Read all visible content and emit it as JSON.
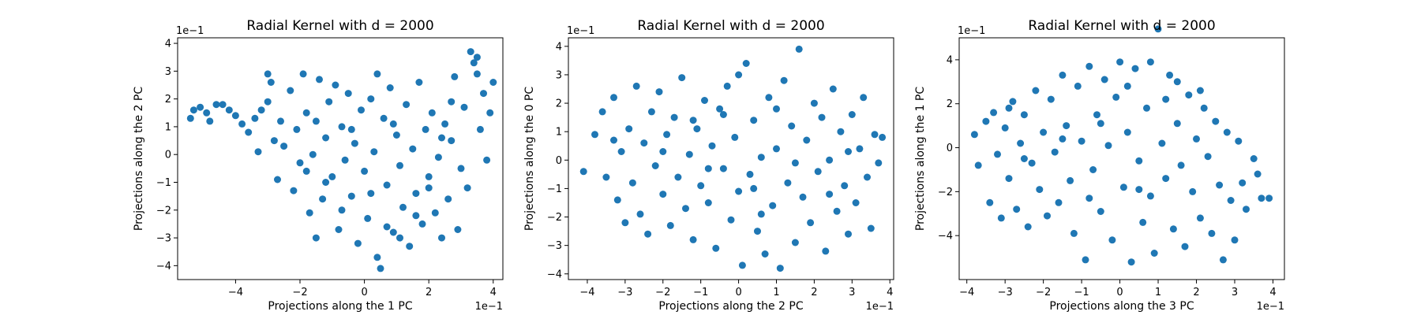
{
  "chart_data": [
    {
      "type": "scatter",
      "title": "Radial Kernel with d = 2000",
      "xlabel": "Projections along the 1 PC",
      "ylabel": "Projections along the 2 PC",
      "x_offset_label": "1e−1",
      "y_offset_label": "1e−1",
      "xlim": [
        -5.8,
        4.3
      ],
      "ylim": [
        -4.5,
        4.2
      ],
      "xticks": [
        -4,
        -2,
        0,
        2,
        4
      ],
      "yticks": [
        -4,
        -3,
        -2,
        -1,
        0,
        1,
        2,
        3,
        4
      ],
      "xtick_labels": [
        "−4",
        "−2",
        "0",
        "2",
        "4"
      ],
      "ytick_labels": [
        "−4",
        "−3",
        "−2",
        "−1",
        "0",
        "1",
        "2",
        "3",
        "4"
      ],
      "marker_color": "#1f77b4",
      "grid": false,
      "points": [
        [
          -5.4,
          1.3
        ],
        [
          -5.3,
          1.6
        ],
        [
          -5.1,
          1.7
        ],
        [
          -4.9,
          1.5
        ],
        [
          -4.8,
          1.2
        ],
        [
          -4.6,
          1.8
        ],
        [
          -4.4,
          1.8
        ],
        [
          -4.2,
          1.6
        ],
        [
          -4.0,
          1.4
        ],
        [
          -3.8,
          1.1
        ],
        [
          -3.6,
          0.8
        ],
        [
          -3.4,
          1.3
        ],
        [
          -3.2,
          1.6
        ],
        [
          -3.0,
          2.9
        ],
        [
          -3.0,
          1.9
        ],
        [
          -2.9,
          2.6
        ],
        [
          -2.8,
          0.5
        ],
        [
          -2.7,
          -0.9
        ],
        [
          -2.5,
          0.3
        ],
        [
          -2.3,
          2.3
        ],
        [
          -2.2,
          -1.3
        ],
        [
          -2.0,
          -0.3
        ],
        [
          -1.9,
          2.9
        ],
        [
          -1.8,
          1.5
        ],
        [
          -1.7,
          -2.1
        ],
        [
          -1.6,
          0.0
        ],
        [
          -1.5,
          -3.0
        ],
        [
          -1.4,
          2.7
        ],
        [
          -1.3,
          -1.6
        ],
        [
          -1.2,
          0.6
        ],
        [
          -1.1,
          1.9
        ],
        [
          -1.0,
          -0.8
        ],
        [
          -0.9,
          2.5
        ],
        [
          -0.8,
          -2.7
        ],
        [
          -0.7,
          1.0
        ],
        [
          -0.6,
          -0.2
        ],
        [
          -0.5,
          2.2
        ],
        [
          -0.4,
          -1.5
        ],
        [
          -0.3,
          0.4
        ],
        [
          -0.2,
          -3.2
        ],
        [
          -0.1,
          1.6
        ],
        [
          0.0,
          -0.6
        ],
        [
          0.1,
          -2.3
        ],
        [
          0.2,
          2.0
        ],
        [
          0.3,
          0.1
        ],
        [
          0.4,
          -3.7
        ],
        [
          0.5,
          -4.1
        ],
        [
          0.6,
          1.3
        ],
        [
          0.7,
          -1.1
        ],
        [
          0.8,
          2.4
        ],
        [
          0.9,
          -2.8
        ],
        [
          1.0,
          0.7
        ],
        [
          1.1,
          -0.4
        ],
        [
          1.2,
          -1.9
        ],
        [
          1.3,
          1.8
        ],
        [
          1.4,
          -3.3
        ],
        [
          1.5,
          0.2
        ],
        [
          1.6,
          -1.4
        ],
        [
          1.7,
          2.6
        ],
        [
          1.8,
          -2.5
        ],
        [
          1.9,
          0.9
        ],
        [
          2.0,
          -0.8
        ],
        [
          2.1,
          1.5
        ],
        [
          2.2,
          -2.1
        ],
        [
          2.3,
          -0.1
        ],
        [
          2.4,
          -3.0
        ],
        [
          2.5,
          1.1
        ],
        [
          2.6,
          -1.6
        ],
        [
          2.7,
          0.5
        ],
        [
          2.8,
          2.8
        ],
        [
          2.9,
          -2.7
        ],
        [
          3.0,
          -0.5
        ],
        [
          3.1,
          1.7
        ],
        [
          3.2,
          -1.2
        ],
        [
          3.3,
          3.7
        ],
        [
          3.4,
          3.3
        ],
        [
          3.5,
          2.9
        ],
        [
          3.6,
          0.9
        ],
        [
          3.7,
          2.2
        ],
        [
          3.8,
          -0.2
        ],
        [
          3.9,
          1.5
        ],
        [
          4.0,
          2.6
        ],
        [
          -2.6,
          1.2
        ],
        [
          -2.1,
          0.9
        ],
        [
          -1.8,
          -0.6
        ],
        [
          -1.2,
          -1.0
        ],
        [
          -0.7,
          -2.0
        ],
        [
          0.2,
          -1.4
        ],
        [
          0.7,
          -2.6
        ],
        [
          1.1,
          -3.0
        ],
        [
          1.6,
          -2.2
        ],
        [
          2.0,
          -1.2
        ],
        [
          2.4,
          0.6
        ],
        [
          2.7,
          1.9
        ],
        [
          -3.3,
          0.1
        ],
        [
          -0.4,
          0.9
        ],
        [
          0.9,
          1.1
        ],
        [
          -1.5,
          1.2
        ],
        [
          0.4,
          2.9
        ],
        [
          3.5,
          3.5
        ]
      ]
    },
    {
      "type": "scatter",
      "title": "Radial Kernel with d = 2000",
      "xlabel": "Projections along the 2 PC",
      "ylabel": "Projections along the 0 PC",
      "x_offset_label": "1e−1",
      "y_offset_label": "1e−1",
      "xlim": [
        -4.5,
        4.1
      ],
      "ylim": [
        -4.2,
        4.3
      ],
      "xticks": [
        -4,
        -3,
        -2,
        -1,
        0,
        1,
        2,
        3,
        4
      ],
      "yticks": [
        -4,
        -3,
        -2,
        -1,
        0,
        1,
        2,
        3,
        4
      ],
      "xtick_labels": [
        "−4",
        "−3",
        "−2",
        "−1",
        "0",
        "1",
        "2",
        "3",
        "4"
      ],
      "ytick_labels": [
        "−4",
        "−3",
        "−2",
        "−1",
        "0",
        "1",
        "2",
        "3",
        "4"
      ],
      "marker_color": "#1f77b4",
      "grid": false,
      "points": [
        [
          -4.1,
          -0.4
        ],
        [
          -3.8,
          0.9
        ],
        [
          -3.6,
          1.7
        ],
        [
          -3.5,
          -0.6
        ],
        [
          -3.3,
          2.2
        ],
        [
          -3.2,
          -1.4
        ],
        [
          -3.1,
          0.3
        ],
        [
          -3.0,
          -2.2
        ],
        [
          -2.9,
          1.1
        ],
        [
          -2.8,
          -0.8
        ],
        [
          -2.7,
          2.6
        ],
        [
          -2.6,
          -1.9
        ],
        [
          -2.5,
          0.6
        ],
        [
          -2.4,
          -2.6
        ],
        [
          -2.3,
          1.7
        ],
        [
          -2.2,
          -0.2
        ],
        [
          -2.1,
          2.4
        ],
        [
          -2.0,
          -1.2
        ],
        [
          -1.9,
          0.9
        ],
        [
          -1.8,
          -2.3
        ],
        [
          -1.7,
          1.5
        ],
        [
          -1.6,
          -0.6
        ],
        [
          -1.5,
          2.9
        ],
        [
          -1.4,
          -1.7
        ],
        [
          -1.3,
          0.2
        ],
        [
          -1.2,
          -2.8
        ],
        [
          -1.1,
          1.1
        ],
        [
          -1.0,
          -0.9
        ],
        [
          -0.9,
          2.1
        ],
        [
          -0.8,
          -1.5
        ],
        [
          -0.7,
          0.5
        ],
        [
          -0.6,
          -3.1
        ],
        [
          -0.5,
          1.8
        ],
        [
          -0.4,
          -0.3
        ],
        [
          -0.3,
          2.6
        ],
        [
          -0.2,
          -2.1
        ],
        [
          -0.1,
          0.8
        ],
        [
          0.0,
          -1.1
        ],
        [
          0.1,
          -3.7
        ],
        [
          0.2,
          3.4
        ],
        [
          0.3,
          -0.5
        ],
        [
          0.4,
          1.4
        ],
        [
          0.5,
          -2.5
        ],
        [
          0.6,
          0.1
        ],
        [
          0.7,
          -3.3
        ],
        [
          0.8,
          2.2
        ],
        [
          0.9,
          -1.6
        ],
        [
          1.0,
          0.4
        ],
        [
          1.1,
          -3.8
        ],
        [
          1.2,
          2.8
        ],
        [
          1.3,
          -0.8
        ],
        [
          1.4,
          1.2
        ],
        [
          1.5,
          -2.9
        ],
        [
          1.6,
          3.9
        ],
        [
          1.7,
          -1.3
        ],
        [
          1.8,
          0.7
        ],
        [
          1.9,
          -2.2
        ],
        [
          2.0,
          2.0
        ],
        [
          2.1,
          -0.4
        ],
        [
          2.2,
          1.5
        ],
        [
          2.3,
          -3.2
        ],
        [
          2.4,
          0.0
        ],
        [
          2.5,
          2.5
        ],
        [
          2.6,
          -1.8
        ],
        [
          2.7,
          1.0
        ],
        [
          2.8,
          -0.9
        ],
        [
          2.9,
          -2.6
        ],
        [
          3.0,
          1.6
        ],
        [
          3.1,
          -1.5
        ],
        [
          3.2,
          0.4
        ],
        [
          3.3,
          2.2
        ],
        [
          3.4,
          -0.6
        ],
        [
          3.5,
          -2.4
        ],
        [
          3.6,
          0.9
        ],
        [
          3.7,
          -0.1
        ],
        [
          3.8,
          0.8
        ],
        [
          -1.2,
          1.4
        ],
        [
          -0.4,
          1.6
        ],
        [
          0.4,
          -1.0
        ],
        [
          0.6,
          -1.9
        ],
        [
          1.0,
          1.8
        ],
        [
          -2.0,
          0.3
        ],
        [
          2.4,
          -1.2
        ],
        [
          0.0,
          3.0
        ],
        [
          -0.8,
          -0.3
        ],
        [
          1.5,
          -0.1
        ],
        [
          -3.3,
          0.7
        ],
        [
          2.9,
          0.3
        ]
      ]
    },
    {
      "type": "scatter",
      "title": "Radial Kernel with d = 2000",
      "xlabel": "Projections along the 3 PC",
      "ylabel": "Projections along the 1 PC",
      "x_offset_label": "1e−1",
      "y_offset_label": "1e−1",
      "xlim": [
        -4.2,
        4.3
      ],
      "ylim": [
        -6.0,
        5.0
      ],
      "xticks": [
        -4,
        -3,
        -2,
        -1,
        0,
        1,
        2,
        3,
        4
      ],
      "yticks": [
        -4,
        -2,
        0,
        2,
        4
      ],
      "xtick_labels": [
        "−4",
        "−3",
        "−2",
        "−1",
        "0",
        "1",
        "2",
        "3",
        "4"
      ],
      "ytick_labels": [
        "−4",
        "−2",
        "0",
        "2",
        "4"
      ],
      "marker_color": "#1f77b4",
      "grid": false,
      "points": [
        [
          -3.8,
          0.6
        ],
        [
          -3.7,
          -0.8
        ],
        [
          -3.5,
          1.2
        ],
        [
          -3.4,
          -2.5
        ],
        [
          -3.3,
          1.6
        ],
        [
          -3.2,
          -0.3
        ],
        [
          -3.1,
          -3.2
        ],
        [
          -3.0,
          0.9
        ],
        [
          -2.9,
          -1.4
        ],
        [
          -2.8,
          2.1
        ],
        [
          -2.7,
          -2.8
        ],
        [
          -2.6,
          0.2
        ],
        [
          -2.5,
          1.5
        ],
        [
          -2.4,
          -3.6
        ],
        [
          -2.3,
          -0.7
        ],
        [
          -2.2,
          2.6
        ],
        [
          -2.1,
          -1.9
        ],
        [
          -2.0,
          0.7
        ],
        [
          -1.9,
          -3.1
        ],
        [
          -1.8,
          2.2
        ],
        [
          -1.7,
          -0.2
        ],
        [
          -1.6,
          -2.5
        ],
        [
          -1.5,
          3.3
        ],
        [
          -1.4,
          1.0
        ],
        [
          -1.3,
          -1.5
        ],
        [
          -1.2,
          -3.9
        ],
        [
          -1.1,
          2.8
        ],
        [
          -1.0,
          0.3
        ],
        [
          -0.9,
          -5.1
        ],
        [
          -0.8,
          3.7
        ],
        [
          -0.7,
          -1.0
        ],
        [
          -0.6,
          1.5
        ],
        [
          -0.5,
          -2.9
        ],
        [
          -0.4,
          3.1
        ],
        [
          -0.3,
          0.1
        ],
        [
          -0.2,
          -4.2
        ],
        [
          -0.1,
          2.3
        ],
        [
          0.0,
          3.9
        ],
        [
          0.1,
          -1.8
        ],
        [
          0.2,
          0.7
        ],
        [
          0.3,
          -5.2
        ],
        [
          0.4,
          3.6
        ],
        [
          0.5,
          -0.6
        ],
        [
          0.6,
          -3.4
        ],
        [
          0.7,
          1.8
        ],
        [
          0.8,
          -2.2
        ],
        [
          0.9,
          -4.8
        ],
        [
          1.0,
          5.4
        ],
        [
          1.1,
          0.2
        ],
        [
          1.2,
          -1.4
        ],
        [
          1.3,
          3.3
        ],
        [
          1.4,
          -3.7
        ],
        [
          1.5,
          1.1
        ],
        [
          1.6,
          -0.8
        ],
        [
          1.7,
          -4.5
        ],
        [
          1.8,
          2.4
        ],
        [
          1.9,
          -2.0
        ],
        [
          2.0,
          0.4
        ],
        [
          2.1,
          -3.2
        ],
        [
          2.2,
          1.8
        ],
        [
          2.3,
          -0.4
        ],
        [
          2.4,
          -3.9
        ],
        [
          2.5,
          1.2
        ],
        [
          2.6,
          -1.7
        ],
        [
          2.7,
          -5.1
        ],
        [
          2.8,
          0.7
        ],
        [
          2.9,
          -2.4
        ],
        [
          3.0,
          -4.2
        ],
        [
          3.1,
          0.3
        ],
        [
          3.2,
          -1.6
        ],
        [
          3.3,
          -2.8
        ],
        [
          3.5,
          -0.5
        ],
        [
          3.6,
          -1.2
        ],
        [
          3.7,
          -2.3
        ],
        [
          3.9,
          -2.3
        ],
        [
          -2.5,
          -0.5
        ],
        [
          0.8,
          3.9
        ],
        [
          1.2,
          2.2
        ],
        [
          -1.5,
          0.4
        ],
        [
          0.5,
          -1.9
        ],
        [
          2.1,
          2.6
        ],
        [
          -0.8,
          -2.3
        ],
        [
          1.5,
          3.0
        ],
        [
          -2.9,
          1.8
        ],
        [
          0.2,
          2.8
        ],
        [
          -0.5,
          1.1
        ]
      ]
    }
  ]
}
